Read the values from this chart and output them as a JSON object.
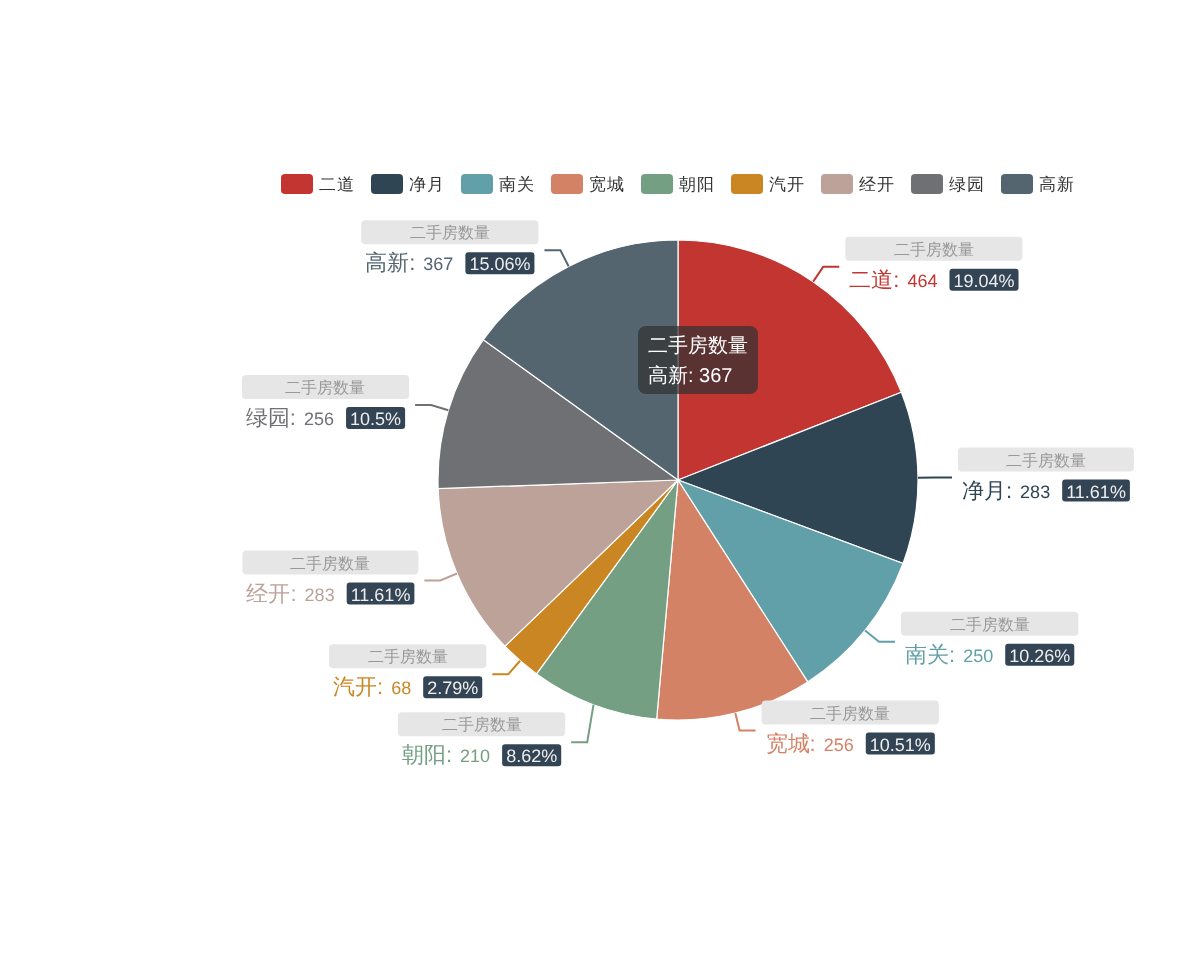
{
  "chart_data": {
    "type": "pie",
    "categories": [
      "二道",
      "净月",
      "南关",
      "宽城",
      "朝阳",
      "汽开",
      "经开",
      "绿园",
      "高新"
    ],
    "series": [
      {
        "name": "二手房数量",
        "values": [
          464,
          283,
          250,
          256,
          210,
          68,
          283,
          256,
          367
        ],
        "colors": [
          "#c23531",
          "#2f4554",
          "#61a0a8",
          "#d48265",
          "#749f83",
          "#ca8622",
          "#bda29a",
          "#6e7074",
          "#546570"
        ],
        "value_labels": [
          "二道: 464 19.04%",
          "净月: 283 11.61%",
          "南关: 250 10.26%",
          "宽城: 256 10.51%",
          "朝阳: 210 8.62%",
          "汽开: 68 2.79%",
          "经开: 283 11.61%",
          "绿园: 256 10.5%",
          "高新: 367 15.06%"
        ]
      }
    ],
    "legend": "top",
    "annotations": [
      "二手房数量",
      "高新: 367"
    ]
  }
}
